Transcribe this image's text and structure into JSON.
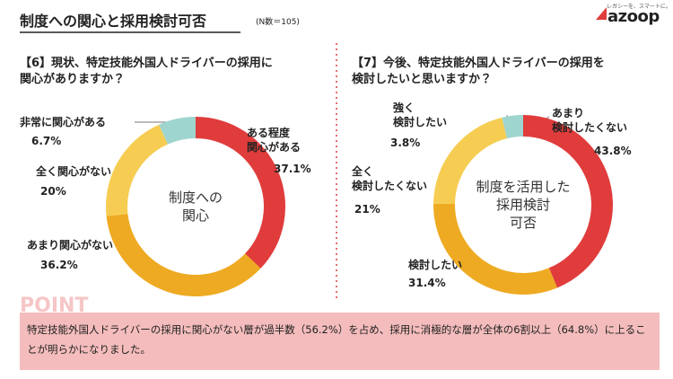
{
  "header": {
    "title": "制度への関心と採用検討可否",
    "note": "(N数＝105)"
  },
  "logo": {
    "tagline": "レガシーを、スマートに。",
    "name": "azoop"
  },
  "chart_data": [
    {
      "type": "pie",
      "title": "【6】現状、特定技能外国人ドライバーの採用に\n関心がありますか？",
      "center_label": "制度への\n関心",
      "categories": [
        "ある程度\n関心がある",
        "あまり関心がない",
        "全く関心がない",
        "非常に関心がある"
      ],
      "values": [
        37.1,
        36.2,
        20,
        6.7
      ],
      "value_labels": [
        "37.1%",
        "36.2%",
        "20%",
        "6.7%"
      ],
      "colors": [
        "#e03c3c",
        "#eeaa22",
        "#f6cd52",
        "#9fd5cf"
      ]
    },
    {
      "type": "pie",
      "title": "【7】今後、特定技能外国人ドライバーの採用を\n検討したいと思いますか？",
      "center_label": "制度を活用した\n採用検討\n可否",
      "categories": [
        "あまり\n検討したくない",
        "検討したい",
        "全く\n検討したくない",
        "強く\n検討したい"
      ],
      "values": [
        43.8,
        31.4,
        21,
        3.8
      ],
      "value_labels": [
        "43.8%",
        "31.4%",
        "21%",
        "3.8%"
      ],
      "colors": [
        "#e03c3c",
        "#eeaa22",
        "#f6cd52",
        "#9fd5cf"
      ]
    }
  ],
  "point": {
    "label": "POINT",
    "text": "特定技能外国人ドライバーの採用に関心がない層が過半数（56.2%）を占め、採用に消極的な層が全体の6割以上（64.8%）に上ることが明らかになりました。"
  }
}
